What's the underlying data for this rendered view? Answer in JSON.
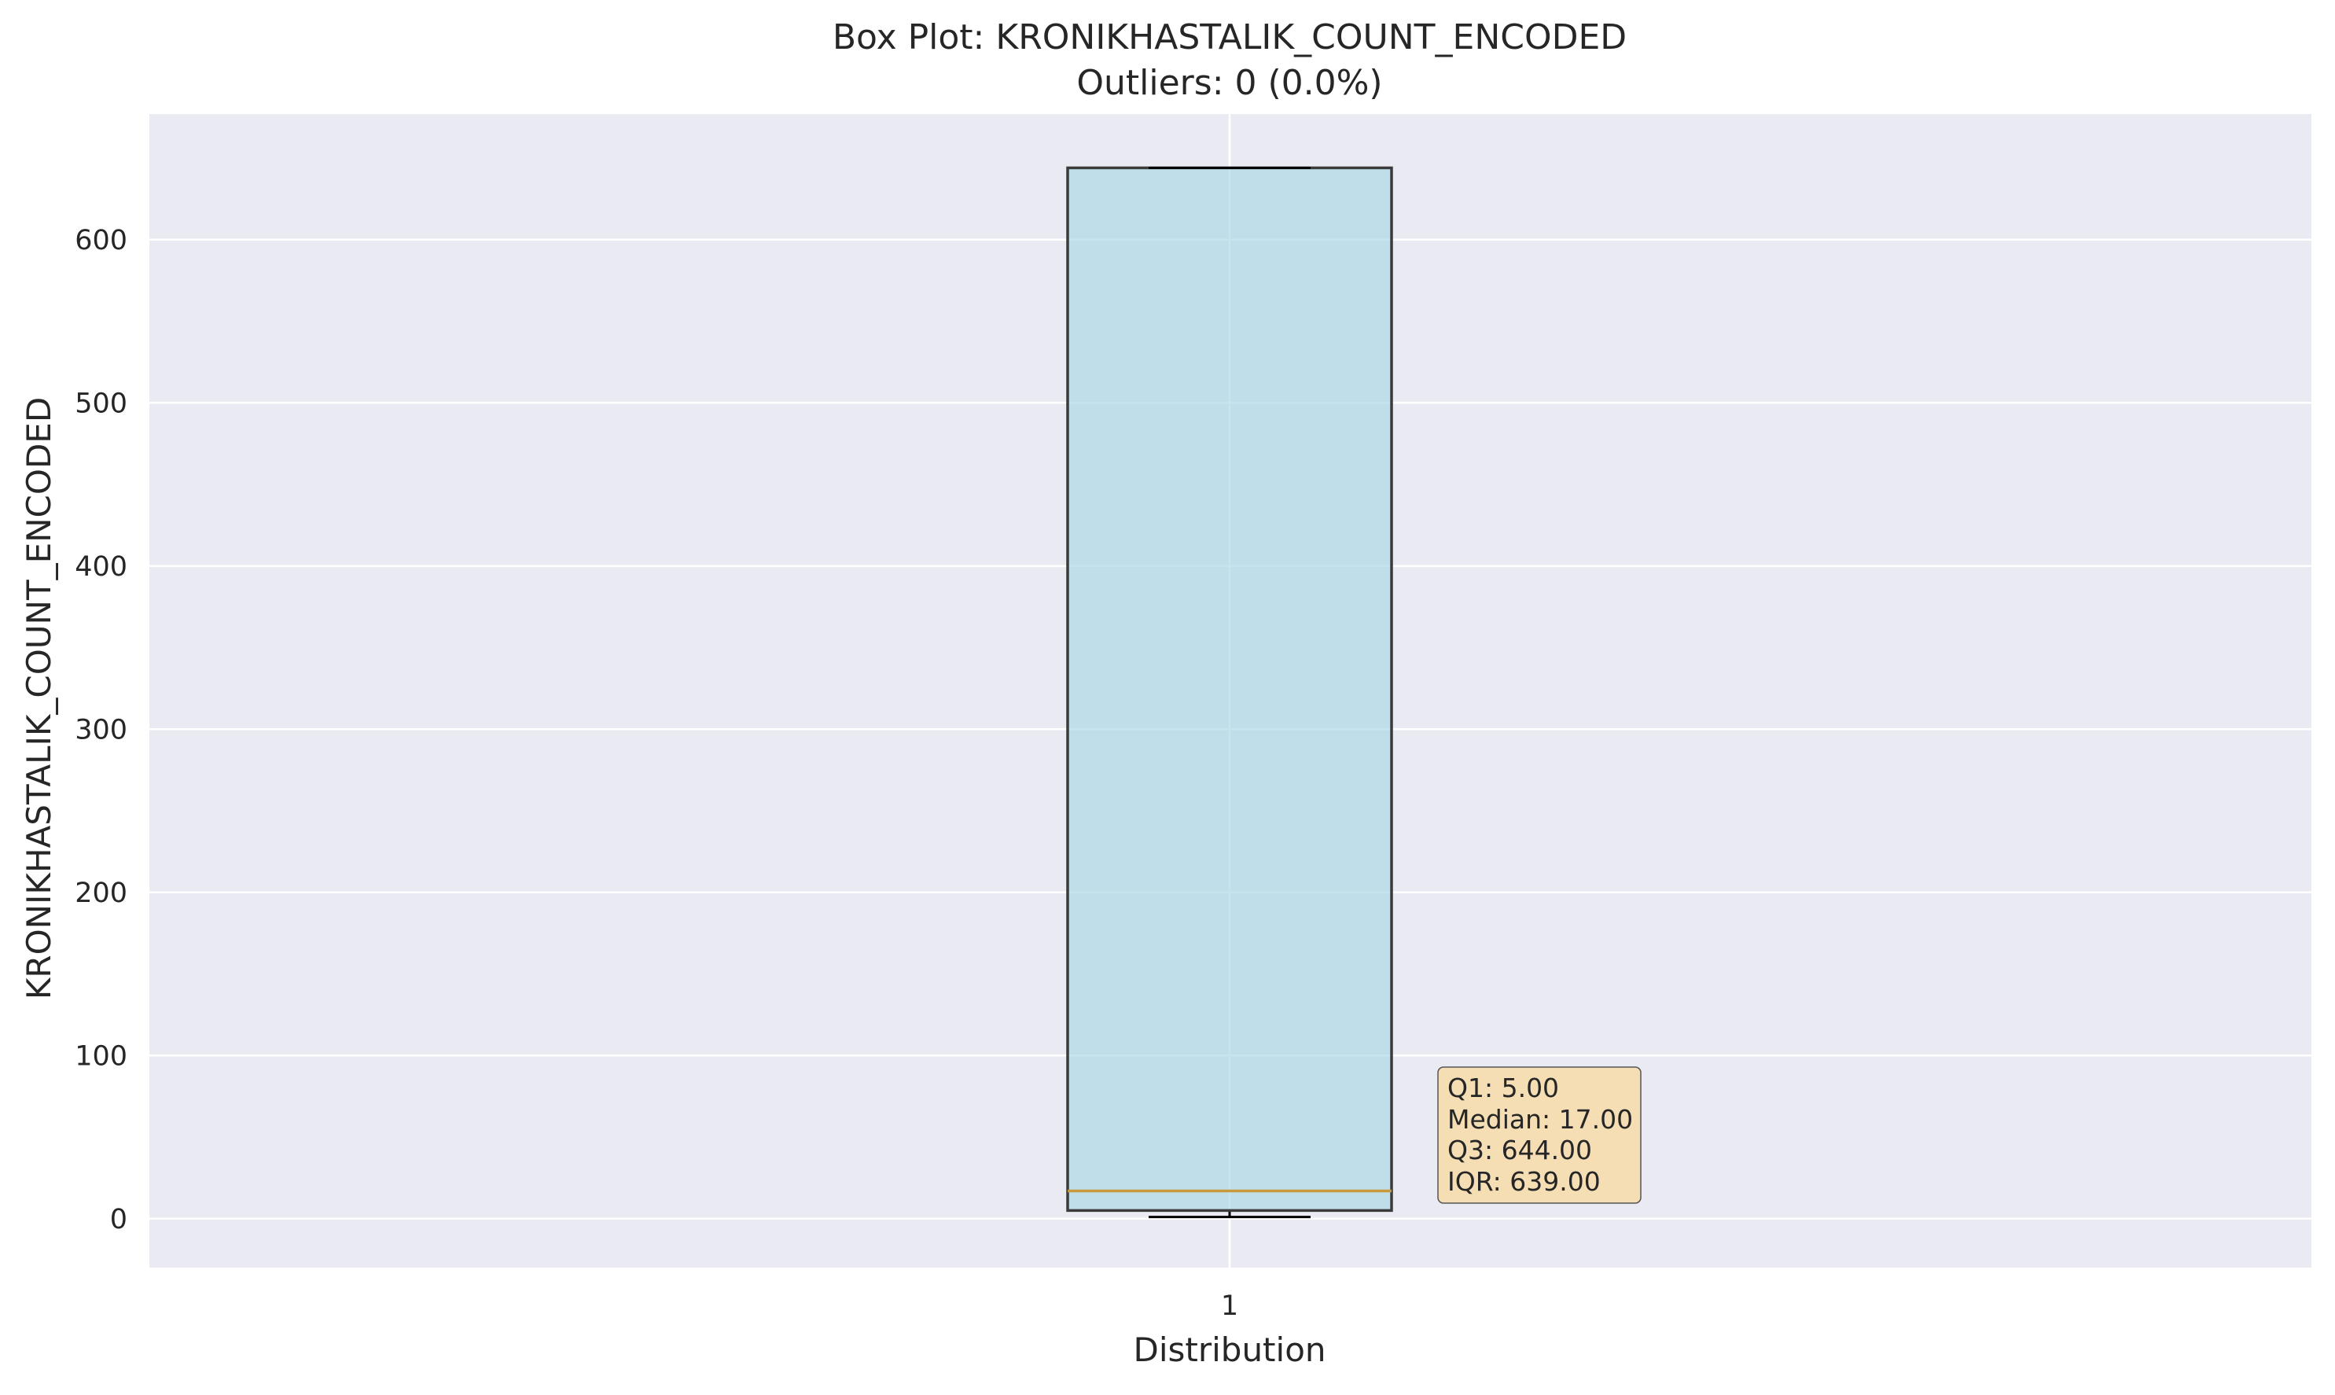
{
  "chart_data": {
    "type": "box",
    "title": "Box Plot: KRONIKHASTALIK_COUNT_ENCODED",
    "subtitle": "Outliers: 0 (0.0%)",
    "xlabel": "Distribution",
    "ylabel": "KRONIKHASTALIK_COUNT_ENCODED",
    "categories": [
      "1"
    ],
    "yticks": [
      0,
      100,
      200,
      300,
      400,
      500,
      600
    ],
    "ylim": [
      -30,
      677
    ],
    "grid": true,
    "box": {
      "whisker_low": 1,
      "q1": 5,
      "median": 17,
      "q3": 644,
      "whisker_high": 644,
      "outliers": []
    },
    "stats_box": {
      "lines": [
        "Q1: 5.00",
        "Median: 17.00",
        "Q3: 644.00",
        "IQR: 639.00"
      ]
    },
    "colors": {
      "plot_background": "#eaeaf2",
      "grid": "#ffffff",
      "box_fill": "#add8e6",
      "box_edge": "#3b3b3b",
      "median": "#c89a3c",
      "whisker": "#000000",
      "stats_box_fill": "#f5deb3",
      "stats_box_edge": "#555555"
    }
  }
}
